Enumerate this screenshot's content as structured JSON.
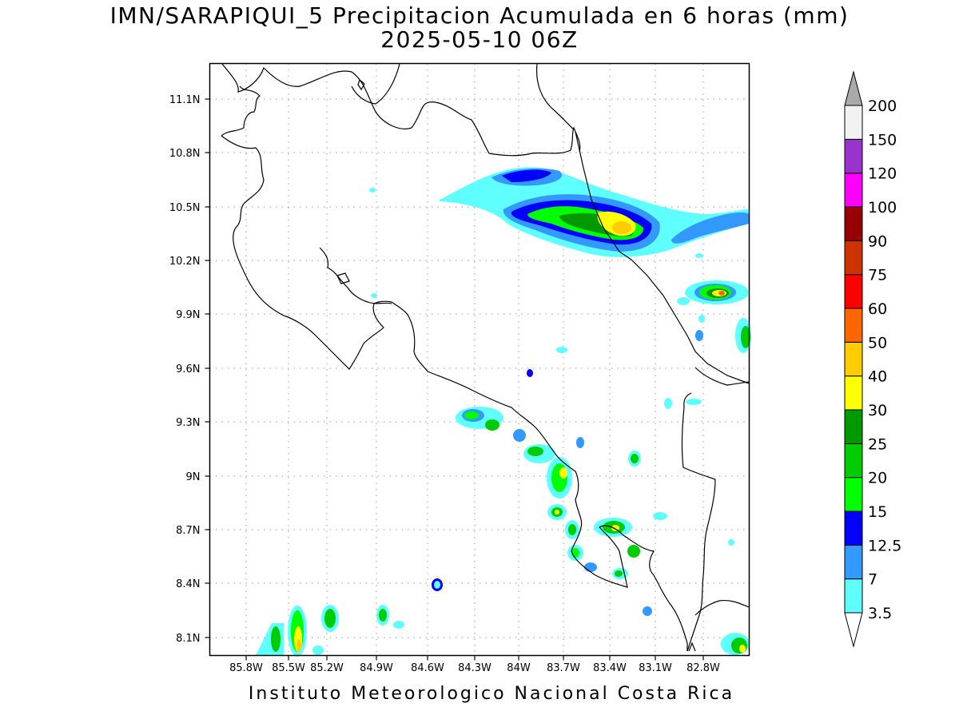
{
  "title_line1": "IMN/SARAPIQUI_5 Precipitacion Acumulada en 6 horas (mm)",
  "title_line2": "2025-05-10 06Z",
  "footer": "Instituto Meteorologico Nacional Costa Rica",
  "map": {
    "lon_range": [
      -86.0,
      -82.55
    ],
    "lat_range": [
      8.0,
      11.2
    ],
    "x_ticks": [
      "85.8W",
      "85.5W",
      "85.2W",
      "84.9W",
      "84.6W",
      "84.3W",
      "84W",
      "83.7W",
      "83.4W",
      "83.1W",
      "82.8W"
    ],
    "y_ticks": [
      "11.1N",
      "10.8N",
      "10.5N",
      "10.2N",
      "9.9N",
      "9.6N",
      "9.3N",
      "9N",
      "8.7N",
      "8.4N",
      "8.1N"
    ],
    "grid": "dotted"
  },
  "colorbar": {
    "labels": [
      "3.5",
      "7",
      "12.5",
      "15",
      "20",
      "25",
      "30",
      "40",
      "50",
      "60",
      "75",
      "90",
      "100",
      "120",
      "150",
      "200"
    ],
    "colors": [
      "#ffffff",
      "#5fffff",
      "#3399ff",
      "#0000ff",
      "#00ff00",
      "#00cc00",
      "#009900",
      "#ffff00",
      "#ffcc00",
      "#ff6600",
      "#ff0000",
      "#cc3300",
      "#990000",
      "#ff00ff",
      "#9933cc",
      "#f2f2f2",
      "#aaaaaa"
    ]
  }
}
